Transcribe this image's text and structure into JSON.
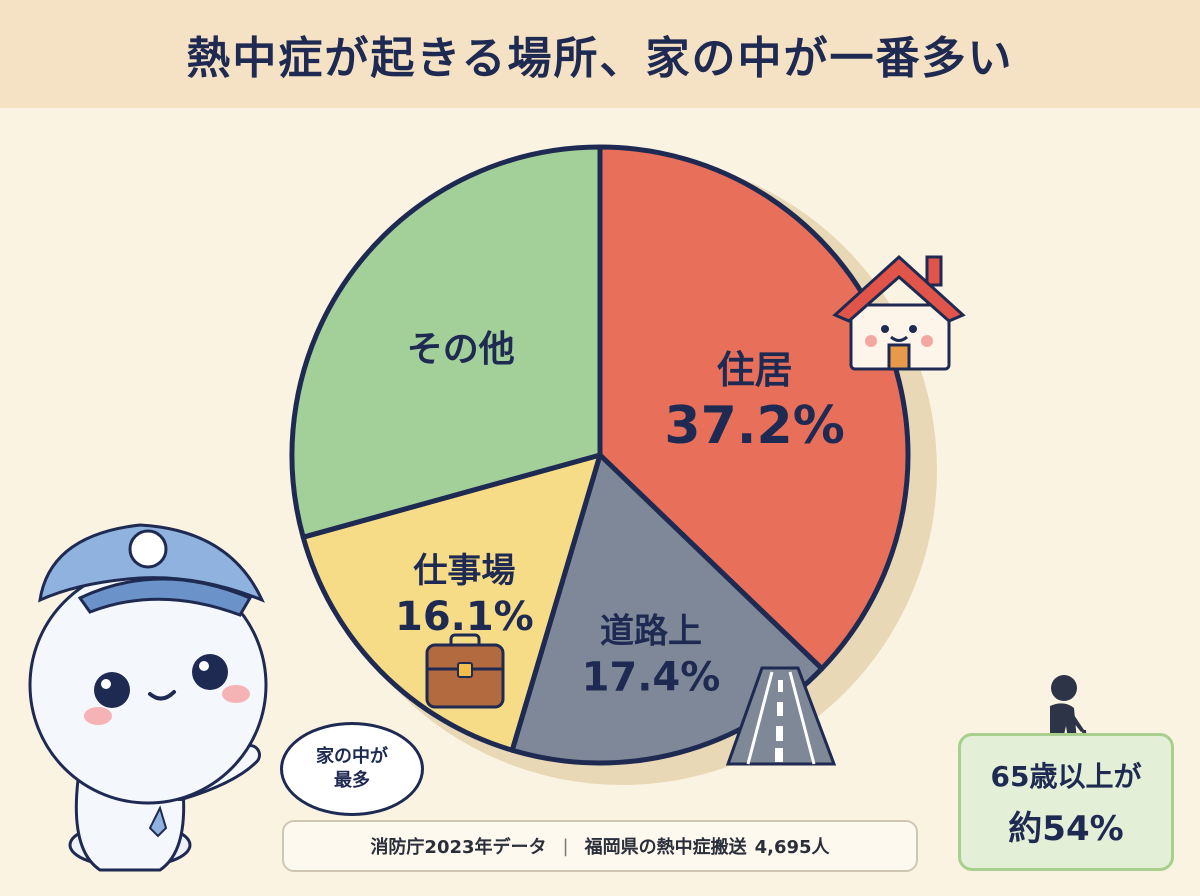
{
  "title": "熱中症が起きる場所、家の中が一番多い",
  "chart_data": {
    "type": "pie",
    "title": "熱中症が起きる場所、家の中が一番多い",
    "slices": [
      {
        "label": "住居",
        "value": 37.2,
        "value_text": "37.2%",
        "color": "#e8705a"
      },
      {
        "label": "道路上",
        "value": 17.4,
        "value_text": "17.4%",
        "color": "#7e8898"
      },
      {
        "label": "仕事場",
        "value": 16.1,
        "value_text": "16.1%",
        "color": "#f6dc86"
      },
      {
        "label": "その他",
        "value": 29.3,
        "value_text": "",
        "color": "#a3d098"
      }
    ]
  },
  "icons": [
    "house-icon",
    "road-icon",
    "briefcase-icon",
    "mascot-character",
    "elderly-person-icon"
  ],
  "note": {
    "source": "消防庁2023年データ",
    "separator": "|",
    "subject": "福岡県の熱中症搬送",
    "count": "4,695人"
  },
  "speech_bubble": {
    "line1": "家の中が",
    "line2": "最多"
  },
  "stat_box": {
    "line1": "65歳以上が",
    "line2": "約54%"
  }
}
